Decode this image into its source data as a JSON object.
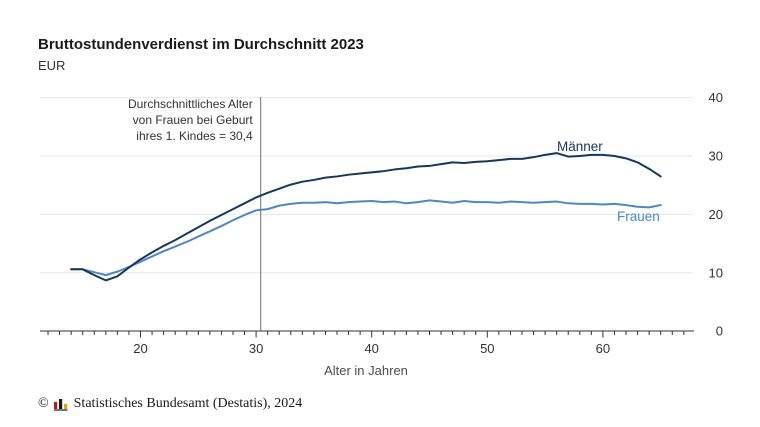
{
  "header": {
    "title": "Bruttostundenverdienst im Durchschnitt 2023",
    "subtitle": "EUR"
  },
  "chart_data": {
    "type": "line",
    "title": "Bruttostundenverdienst im Durchschnitt 2023",
    "unit": "EUR",
    "xlabel": "Alter in Jahren",
    "ylabel": "",
    "xlim": [
      12,
      67
    ],
    "ylim": [
      0,
      40
    ],
    "y_ticks": [
      0,
      10,
      20,
      30,
      40
    ],
    "x_ticks_labeled": [
      20,
      30,
      40,
      50,
      60
    ],
    "x_minor_ticks_every": 1,
    "grid": "horizontal",
    "legend_position": "inline-right-of-lines",
    "x": [
      14,
      15,
      16,
      17,
      18,
      19,
      20,
      21,
      22,
      23,
      24,
      25,
      26,
      27,
      28,
      29,
      30,
      31,
      32,
      33,
      34,
      35,
      36,
      37,
      38,
      39,
      40,
      41,
      42,
      43,
      44,
      45,
      46,
      47,
      48,
      49,
      50,
      51,
      52,
      53,
      54,
      55,
      56,
      57,
      58,
      59,
      60,
      61,
      62,
      63,
      64,
      65
    ],
    "series": [
      {
        "name": "Männer",
        "color": "#16385c",
        "values": [
          10.6,
          10.6,
          9.6,
          8.7,
          9.4,
          10.9,
          12.3,
          13.5,
          14.6,
          15.6,
          16.7,
          17.8,
          18.9,
          19.9,
          20.9,
          21.9,
          22.9,
          23.7,
          24.4,
          25.1,
          25.6,
          25.9,
          26.3,
          26.5,
          26.8,
          27.0,
          27.2,
          27.4,
          27.7,
          27.9,
          28.2,
          28.3,
          28.6,
          28.9,
          28.8,
          29.0,
          29.1,
          29.3,
          29.5,
          29.5,
          29.8,
          30.2,
          30.5,
          29.9,
          30.0,
          30.2,
          30.2,
          30.0,
          29.6,
          28.9,
          27.8,
          26.5
        ]
      },
      {
        "name": "Frauen",
        "color": "#4f86c4",
        "values": [
          10.6,
          10.6,
          10.1,
          9.6,
          10.2,
          11.0,
          11.9,
          12.8,
          13.7,
          14.5,
          15.3,
          16.2,
          17.1,
          18.0,
          19.0,
          19.9,
          20.7,
          20.9,
          21.5,
          21.8,
          22.0,
          22.0,
          22.1,
          21.9,
          22.1,
          22.2,
          22.3,
          22.1,
          22.2,
          21.9,
          22.1,
          22.4,
          22.2,
          22.0,
          22.3,
          22.1,
          22.1,
          22.0,
          22.2,
          22.1,
          22.0,
          22.1,
          22.2,
          21.9,
          21.8,
          21.8,
          21.7,
          21.8,
          21.6,
          21.3,
          21.2,
          21.6
        ]
      }
    ],
    "annotation": {
      "x_value": 30.4,
      "lines": [
        "Durchschnittliches Alter",
        "von Frauen bei Geburt",
        "ihres 1. Kindes = 30,4"
      ]
    }
  },
  "colors": {
    "maenner": "#16385c",
    "frauen": "#4f86c4",
    "gridline": "#e7e7e7",
    "axis": "#333333",
    "annotation_line": "#6e6e6e",
    "tick_label": "#333333",
    "axis_title": "#4d4d4d",
    "logo_red": "#c8161d",
    "logo_dark": "#1a1a1a",
    "logo_orange": "#f0a000"
  },
  "footer": {
    "copyright": "©",
    "source": "Statistisches Bundesamt (Destatis), 2024"
  }
}
